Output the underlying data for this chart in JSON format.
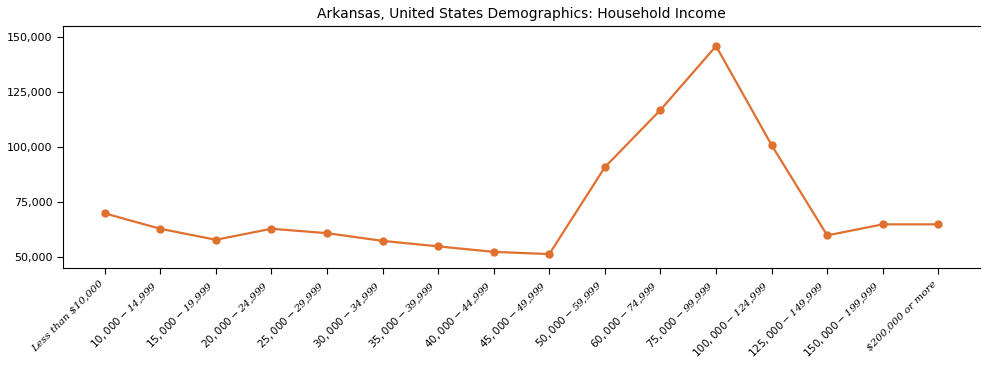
{
  "title": "Arkansas, United States Demographics: Household Income",
  "categories": [
    "Less than $10,000",
    "$10,000 - $14,999",
    "$15,000 - $19,999",
    "$20,000 - $24,999",
    "$25,000 - $29,999",
    "$30,000 - $34,999",
    "$35,000 - $39,999",
    "$40,000 - $44,999",
    "$45,000 - $49,999",
    "$50,000 - $59,999",
    "$60,000 - $74,999",
    "$75,000 - $99,999",
    "$100,000 - $124,999",
    "$125,000 - $149,999",
    "$150,000 - $199,999",
    "$200,000 or more"
  ],
  "values": [
    70000,
    63000,
    58000,
    63000,
    61000,
    57500,
    55000,
    52500,
    51500,
    91000,
    117000,
    146000,
    101000,
    60000,
    65000,
    65000
  ],
  "line_color": "#e07030",
  "marker_color": "#e07030",
  "marker_style": "o",
  "marker_size": 5,
  "line_width": 1.6,
  "ylim": [
    45000,
    155000
  ],
  "yticks": [
    50000,
    75000,
    100000,
    125000,
    150000
  ],
  "background_color": "#ffffff",
  "title_fontsize": 10,
  "tick_fontsize": 7.5,
  "ytick_fontsize": 8
}
